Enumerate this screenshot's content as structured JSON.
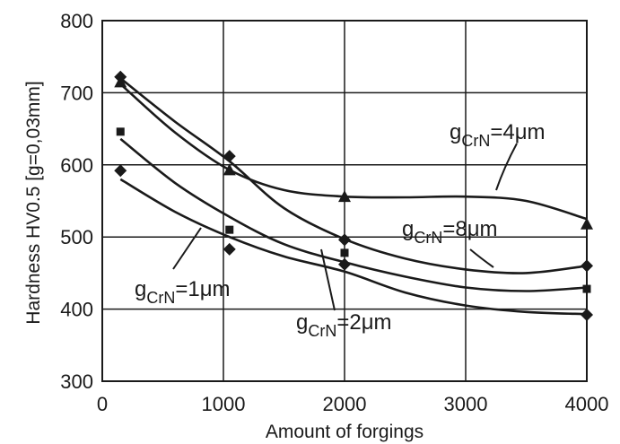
{
  "chart_data": {
    "type": "line",
    "xlabel": "Amount of forgings",
    "ylabel": "Hardness  HV0.5 [g=0,03mm]",
    "xlim": [
      0,
      4000
    ],
    "ylim": [
      300,
      800
    ],
    "xticks": [
      "0",
      "1000",
      "2000",
      "3000",
      "4000"
    ],
    "yticks": [
      "300",
      "400",
      "500",
      "600",
      "700",
      "800"
    ],
    "grid": true,
    "annotations": [
      {
        "main": "g",
        "sub": "CrN",
        "rest": "=1μm"
      },
      {
        "main": "g",
        "sub": "CrN",
        "rest": "=2μm"
      },
      {
        "main": "g",
        "sub": "CrN",
        "rest": "=4μm"
      },
      {
        "main": "g",
        "sub": "CrN",
        "rest": "=8μm"
      }
    ],
    "series": [
      {
        "annotation": "gCrN=1μm",
        "marker": "diamond",
        "points": [
          [
            150,
            592
          ],
          [
            1050,
            483
          ],
          [
            2000,
            462
          ],
          [
            4000,
            392
          ]
        ],
        "curve": [
          [
            150,
            580
          ],
          [
            600,
            535
          ],
          [
            1050,
            500
          ],
          [
            1500,
            473
          ],
          [
            2000,
            452
          ],
          [
            2500,
            423
          ],
          [
            3000,
            405
          ],
          [
            3500,
            396
          ],
          [
            4000,
            393
          ]
        ]
      },
      {
        "annotation": "gCrN=2μm",
        "marker": "square",
        "points": [
          [
            150,
            646
          ],
          [
            1050,
            510
          ],
          [
            2000,
            478
          ],
          [
            4000,
            428
          ]
        ],
        "curve": [
          [
            150,
            636
          ],
          [
            600,
            575
          ],
          [
            1050,
            528
          ],
          [
            1500,
            490
          ],
          [
            2000,
            465
          ],
          [
            2500,
            445
          ],
          [
            3000,
            430
          ],
          [
            3500,
            425
          ],
          [
            4000,
            430
          ]
        ]
      },
      {
        "annotation": "gCrN=4μm",
        "marker": "triangle",
        "points": [
          [
            150,
            715
          ],
          [
            1050,
            593
          ],
          [
            2000,
            556
          ],
          [
            4000,
            518
          ]
        ],
        "curve": [
          [
            150,
            712
          ],
          [
            600,
            645
          ],
          [
            1050,
            593
          ],
          [
            1500,
            565
          ],
          [
            2000,
            556
          ],
          [
            2500,
            555
          ],
          [
            3000,
            556
          ],
          [
            3500,
            550
          ],
          [
            4000,
            525
          ]
        ]
      },
      {
        "annotation": "gCrN=8μm",
        "marker": "diamond",
        "points": [
          [
            150,
            722
          ],
          [
            1050,
            612
          ],
          [
            2000,
            496
          ],
          [
            4000,
            460
          ]
        ],
        "curve": [
          [
            150,
            720
          ],
          [
            600,
            660
          ],
          [
            1050,
            605
          ],
          [
            1500,
            540
          ],
          [
            2000,
            497
          ],
          [
            2500,
            470
          ],
          [
            3000,
            455
          ],
          [
            3500,
            450
          ],
          [
            4000,
            460
          ]
        ]
      }
    ]
  }
}
